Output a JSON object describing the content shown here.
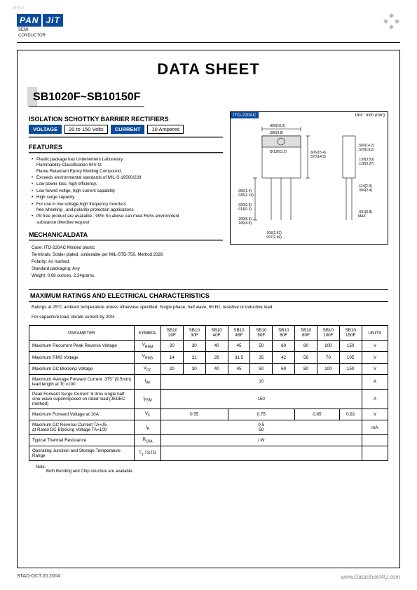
{
  "watermark_tl": "www",
  "logo": {
    "left": "PAN",
    "right": "JiT",
    "sub1": "SEMI",
    "sub2": "CONDUCTOR"
  },
  "title": "DATA  SHEET",
  "part_number": "SB1020F~SB10150F",
  "subtitle": "ISOLATION SCHOTTKY BARRIER RECTIFIERS",
  "voltage": {
    "label": "VOLTAGE",
    "value": "20 to 150 Volts"
  },
  "current": {
    "label": "CURRENT",
    "value": "10 Amperes"
  },
  "features_head": "FEATURES",
  "features": [
    "Plastic package has Underwriters Laboratory\nFlammability Classification 94V-O.\nFlame Retardant Epoxy Molding Compound.",
    "Exceeds environmental standards of MIL-S-19500/228",
    "Low power loss, high efficiency.",
    "Low forwrd voltge, high current capability",
    "High surge capacity.",
    "For use in low voltage,high frequency inverters\nfree wheeling , and polaritiy protection applications.",
    "Pb free product are available : 99% Sn above can meet Rohs environment\nsubstance directive request"
  ],
  "mech_head": "MECHANICALDATA",
  "mech": [
    "Case: ITO-220AC  Molded plastic",
    "Terminals: Solder plated, solderable per MIL-STD-750, Method 2026",
    "Polarity:  As marked.",
    "Standard packaging: Any",
    "Weight: 0.08 ounces, 2.24grams."
  ],
  "pkg": {
    "label": "ITO-220AC",
    "unit": "Unit : inch (mm)",
    "dims": [
      ".406(10.3)",
      ".386(9.8)",
      "Ø.126(3.2)",
      ".278(9.4)",
      ".256(6.5)",
      ".055(1.4)",
      ".045(1.14)",
      ".560(14.2)",
      ".520(13.2)",
      ".139(3.53)",
      ".128(3.27)",
      ".606(15.4)",
      ".570(14.5)",
      ".031(0.8) MAX",
      ".589(14.7)",
      ".567(14.4)",
      ".114(2.9)",
      ".094(2.4)",
      ".209(5.3)",
      ".189(4.8)",
      ".103(2.62)",
      ".097(2.46)"
    ]
  },
  "ratings_title": "MAXIMUM RATINGS AND ELECTRICAL CHARACTERISTICS",
  "ratings_note1": "Ratings at 25°C ambient temperature unless otherwise specified.  Single phase, half wave, 60 Hz, resistive or inductive load.",
  "ratings_note2": "For capacitive load, derate current by 20%",
  "table": {
    "columns": [
      "PARAMETER",
      "SYMBOL",
      "SB10\n20F",
      "SB10\n30F",
      "SB10\n40F",
      "SB10\n45F",
      "SB10\n50F",
      "SB10\n60F",
      "SB10\n80F",
      "SB10\n100F",
      "SB10\n150F",
      "UNITS"
    ],
    "rows": [
      {
        "param": "Maximum Recurrent Peak Reverse Voltage",
        "sym": "VRRM",
        "cells": [
          "20",
          "30",
          "40",
          "45",
          "50",
          "60",
          "80",
          "100",
          "150"
        ],
        "unit": "V"
      },
      {
        "param": "Maximum RMS Voltage",
        "sym": "VRMS",
        "cells": [
          "14",
          "21",
          "28",
          "31.5",
          "35",
          "42",
          "56",
          "70",
          "105"
        ],
        "unit": "V"
      },
      {
        "param": "Maximum DC Blocking Voltage",
        "sym": "VDC",
        "cells": [
          "20",
          "30",
          "40",
          "45",
          "50",
          "60",
          "80",
          "100",
          "150"
        ],
        "unit": "V"
      },
      {
        "param": "Maximum Average Forward Current .375\" (9.5mm) lead length at Tc =100",
        "sym": "IAV",
        "span": "10",
        "unit": "A"
      },
      {
        "param": "Peak Forward Surge Current :8.3ms single half sine-wave superimposed on rated load (JEDEC method)",
        "sym": "IFSM",
        "span": "150",
        "unit": "A"
      },
      {
        "param": "Maximum Forward Voltage at 10A",
        "sym": "VF",
        "spans": [
          {
            "c": 3,
            "v": "0.55"
          },
          {
            "c": 3,
            "v": "0.75"
          },
          {
            "c": 2,
            "v": "0.85"
          },
          {
            "c": 1,
            "v": "0.92"
          }
        ],
        "unit": "V"
      },
      {
        "param": "Maximum DC Reverse Current TA=25\nat Rated DC Blocking Voltage TA=100",
        "sym": "IR",
        "span": "0.5\n50",
        "unit": "mA"
      },
      {
        "param": "Typical Thermal Resistance",
        "sym": "ROJA",
        "span": "/ W",
        "unit": ""
      },
      {
        "param": "Operating Junction and Storage Temperature Range",
        "sym": "TJ,TSTG",
        "span": "",
        "unit": ""
      }
    ]
  },
  "footnote_label": "Note.",
  "footnote": "Both Bonding and Chip structure are available.",
  "footer_left": "STAD-OCT.20.2004",
  "footer_right": "www.DataSheet4U.com"
}
